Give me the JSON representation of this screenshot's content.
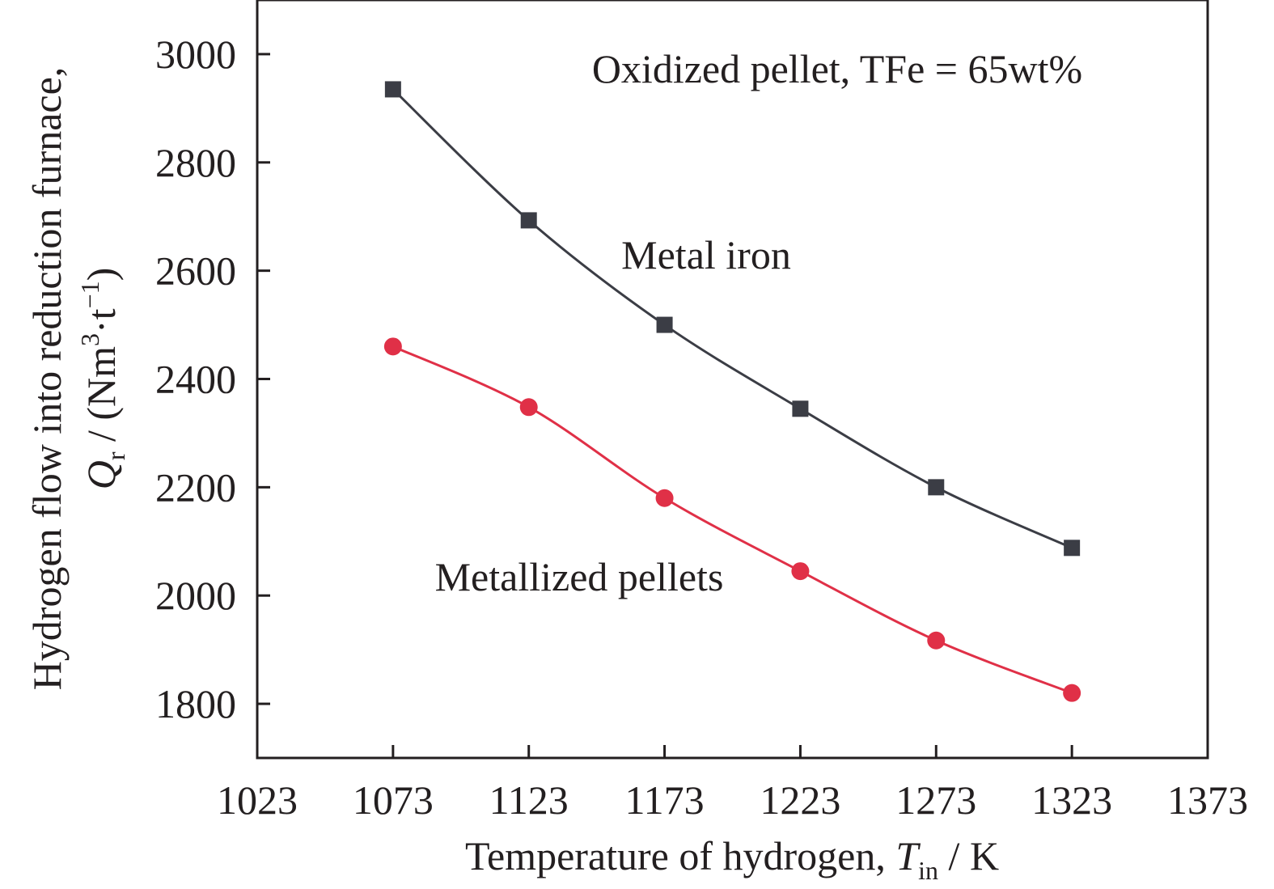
{
  "chart_data": {
    "type": "line",
    "annotation": "Oxidized pellet, TFe = 65wt%",
    "xlabel": {
      "prefix": "Temperature of hydrogen, ",
      "symbol": "T",
      "subscript": "in",
      "suffix": " / K"
    },
    "ylabel": {
      "line1": "Hydrogen flow into reduction furnace,",
      "symbol": "Q",
      "subscript": "r",
      "unit_open": " / (Nm",
      "unit_sup1": "3",
      "unit_mid": "·t",
      "unit_sup2": "−1",
      "unit_close": ")"
    },
    "xlim": [
      1023,
      1373
    ],
    "ylim": [
      1700,
      3100
    ],
    "x_ticks": [
      1023,
      1073,
      1123,
      1173,
      1223,
      1273,
      1323,
      1373
    ],
    "y_ticks": [
      1800,
      2000,
      2200,
      2400,
      2600,
      2800,
      3000
    ],
    "grid": false,
    "legend": "none",
    "x": [
      1073,
      1123,
      1173,
      1223,
      1273,
      1323
    ],
    "series": [
      {
        "name": "Metal iron",
        "values": [
          2935,
          2693,
          2500,
          2345,
          2200,
          2088
        ],
        "color": "#3b3d45",
        "marker": "square"
      },
      {
        "name": "Metallized pellets",
        "values": [
          2460,
          2348,
          2180,
          2045,
          1917,
          1820
        ],
        "color": "#e03047",
        "marker": "circle"
      }
    ]
  }
}
